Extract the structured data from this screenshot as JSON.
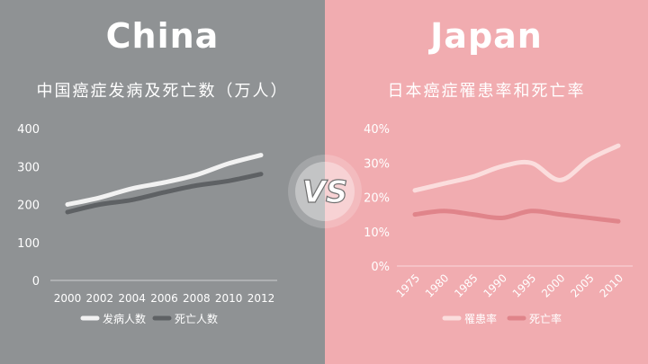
{
  "left": {
    "heading": "China",
    "chart_title": "中国癌症发病及死亡数（万人）"
  },
  "right": {
    "heading": "Japan",
    "chart_title": "日本癌症罹患率和死亡率"
  },
  "vs_label": "VS",
  "colors": {
    "left_bg": "#8f9294",
    "right_bg": "#f1acb0",
    "china_incidence": "#f2f2f2",
    "china_death": "#5e6164",
    "japan_incidence": "#fbdddd",
    "japan_death": "#e0848a"
  },
  "chart_data": [
    {
      "type": "line",
      "title": "中国癌症发病及死亡数（万人）",
      "x": [
        "2000",
        "2002",
        "2004",
        "2006",
        "2008",
        "2010",
        "2012"
      ],
      "y_ticks": [
        "0",
        "100",
        "200",
        "300",
        "400"
      ],
      "ylim": [
        0,
        400
      ],
      "grid": false,
      "legend": "bottom",
      "series": [
        {
          "name": "发病人数",
          "values": [
            200,
            218,
            242,
            258,
            278,
            308,
            330
          ]
        },
        {
          "name": "死亡人数",
          "values": [
            180,
            200,
            212,
            232,
            250,
            262,
            280
          ]
        }
      ]
    },
    {
      "type": "line",
      "title": "日本癌症罹患率和死亡率",
      "x": [
        "1975",
        "1980",
        "1985",
        "1990",
        "1995",
        "2000",
        "2005",
        "2010"
      ],
      "y_ticks": [
        "0%",
        "10%",
        "20%",
        "30%",
        "40%"
      ],
      "ylim": [
        0,
        40
      ],
      "grid": false,
      "legend": "bottom",
      "series": [
        {
          "name": "罹患率",
          "values": [
            22,
            24,
            26,
            29,
            30,
            25,
            31,
            35
          ]
        },
        {
          "name": "死亡率",
          "values": [
            15,
            16,
            15,
            14,
            16,
            15,
            14,
            13
          ]
        }
      ]
    }
  ]
}
